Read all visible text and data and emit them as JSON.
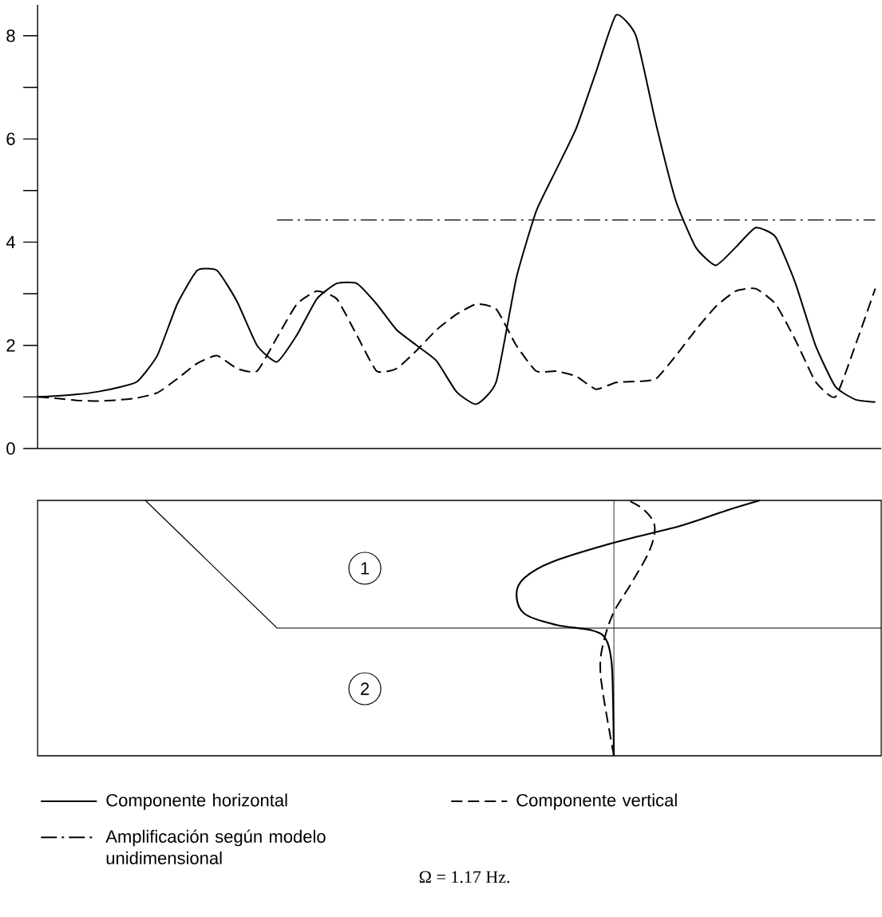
{
  "chart_data": [
    {
      "type": "line",
      "categories": [
        null,
        null,
        null,
        null,
        null,
        null,
        null,
        null,
        null,
        null,
        null,
        null,
        null,
        null,
        null,
        null,
        null,
        null,
        null,
        null,
        null,
        null,
        null,
        null,
        null,
        null,
        null,
        null,
        null,
        null,
        null,
        null,
        null,
        null,
        null,
        null,
        null,
        null,
        null,
        null,
        null,
        null,
        null
      ],
      "series": [
        {
          "name": "Componente horizontal",
          "color": "#000000",
          "line_style": "solid",
          "values": [
            1.0,
            1.02,
            1.05,
            1.1,
            1.18,
            1.3,
            1.8,
            2.8,
            3.45,
            3.45,
            2.85,
            2.0,
            1.68,
            2.2,
            2.9,
            3.2,
            3.2,
            2.8,
            2.3,
            2.0,
            1.7,
            1.1,
            0.86,
            1.3,
            3.3,
            4.6,
            5.4,
            6.2,
            7.3,
            8.4,
            8.0,
            6.3,
            4.8,
            3.9,
            3.55,
            3.9,
            4.28,
            4.1,
            3.2,
            2.0,
            1.2,
            0.95,
            0.9
          ]
        },
        {
          "name": "Componente vertical",
          "color": "#000000",
          "line_style": "dashed",
          "values": [
            1.0,
            0.97,
            0.93,
            0.92,
            0.94,
            0.98,
            1.08,
            1.35,
            1.65,
            1.8,
            1.55,
            1.5,
            2.15,
            2.8,
            3.05,
            2.9,
            2.2,
            1.5,
            1.55,
            1.9,
            2.3,
            2.6,
            2.8,
            2.7,
            2.0,
            1.5,
            1.5,
            1.4,
            1.15,
            1.28,
            1.3,
            1.35,
            1.8,
            2.3,
            2.75,
            3.05,
            3.1,
            2.8,
            2.1,
            1.3,
            1.0,
            2.0,
            3.1
          ]
        },
        {
          "name": "Amplificación según modelo unidimensional",
          "color": "#000000",
          "line_style": "dashdot",
          "values": [
            null,
            null,
            null,
            null,
            null,
            null,
            null,
            null,
            null,
            null,
            null,
            null,
            4.43,
            4.43,
            4.43,
            4.43,
            4.43,
            4.43,
            4.43,
            4.43,
            4.43,
            4.43,
            4.43,
            4.43,
            4.43,
            4.43,
            4.43,
            4.43,
            4.43,
            4.43,
            4.43,
            4.43,
            4.43,
            4.43,
            4.43,
            4.43,
            4.43,
            4.43,
            4.43,
            4.43,
            4.43,
            4.43,
            4.43
          ]
        }
      ],
      "ylim": [
        0,
        8.6
      ],
      "yticks": [
        0,
        2,
        4,
        6,
        8
      ],
      "tick_labels": "y",
      "legend": "bottom",
      "marker": "none",
      "annotations": [
        "Ω = 1.17 Hz."
      ]
    },
    {
      "type": "other",
      "annotations": [
        "1",
        "2"
      ]
    }
  ]
}
